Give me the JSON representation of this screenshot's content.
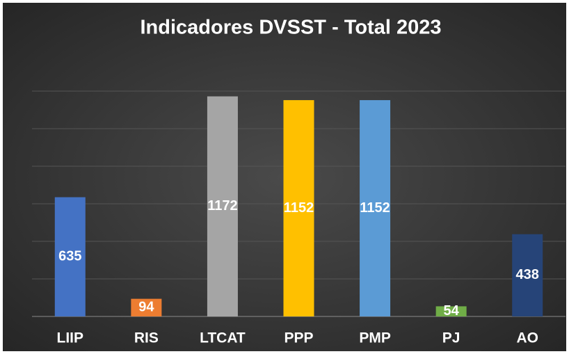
{
  "chart_data": {
    "type": "bar",
    "title": "Indicadores DVSST - Total 2023",
    "categories": [
      "LIIP",
      "RIS",
      "LTCAT",
      "PPP",
      "PMP",
      "PJ",
      "AO"
    ],
    "values": [
      635,
      94,
      1172,
      1152,
      1152,
      54,
      438
    ],
    "colors": [
      "#4472c4",
      "#ed7d31",
      "#a5a5a5",
      "#ffc000",
      "#5b9bd5",
      "#70ad47",
      "#264478"
    ],
    "ylim": [
      0,
      1200
    ],
    "yticks": [
      0,
      200,
      400,
      600,
      800,
      1000,
      1200
    ],
    "grid": true
  }
}
